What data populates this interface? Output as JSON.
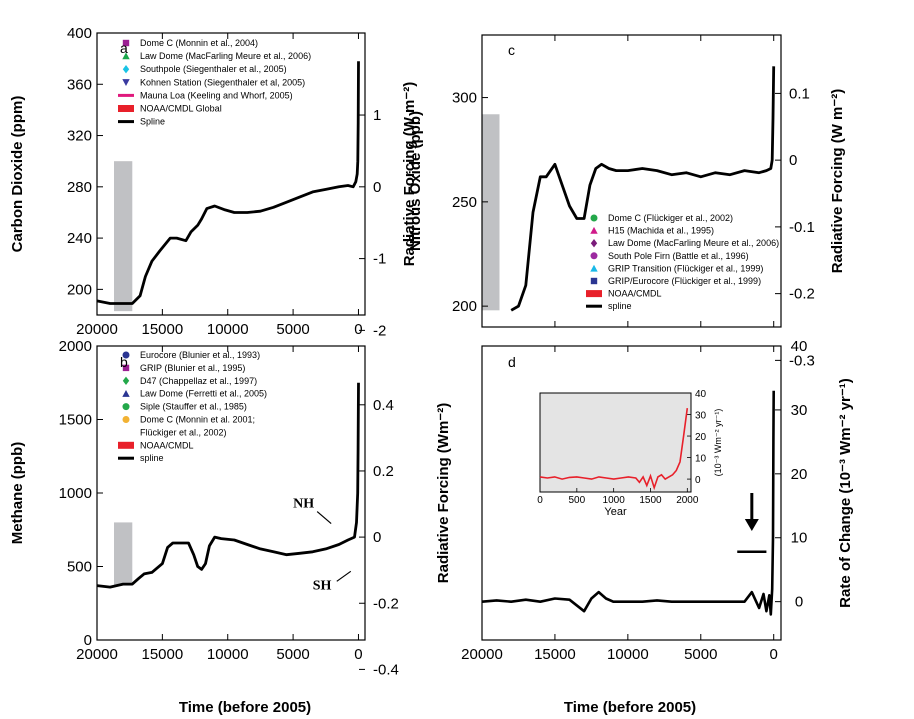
{
  "figure": {
    "x_axis_label": "Time (before 2005)"
  },
  "colors": {
    "dome_c": "#9b1f93",
    "law_dome": "#1aa64a",
    "southpole": "#19c3e5",
    "kohnen": "#3a3aa0",
    "mauna_loa": "#e0197d",
    "noaa": "#e8202a",
    "spline": "#000000",
    "gray_bar": "#c0c1c4",
    "n2o_domec": "#23a84a",
    "n2o_h15": "#d01a8a",
    "n2o_lawdome": "#7a1c7a",
    "n2o_southpole_firn": "#9c2aa0",
    "grip_transition": "#19b9e8",
    "grip_eurocore": "#2a3592",
    "eurocore": "#2a3592",
    "grip": "#9b1f93",
    "d47": "#23a84a",
    "ch4_lawdome": "#2a3592",
    "siple": "#23a84a",
    "ch4_domec": "#f2b233",
    "inset_bg": "#e4e4e4",
    "inset_line": "#e8202a"
  },
  "chart_data": [
    {
      "id": "a",
      "type": "scatter",
      "panel_label": "a",
      "xlabel": "Time (before 2005)",
      "ylabel": "Carbon Dioxide (ppm)",
      "ylabel_right": "Radiative Forcing (W m⁻²)",
      "xlim": [
        20000,
        -500
      ],
      "ylim": [
        180,
        400
      ],
      "x_ticks": [
        20000,
        15000,
        10000,
        5000,
        0
      ],
      "x_tick_labels": [
        "20000",
        "15000",
        "10000",
        "5000",
        "0"
      ],
      "y_ticks": [
        200,
        240,
        280,
        320,
        360,
        400
      ],
      "y_tick_labels": [
        "200",
        "240",
        "280",
        "320",
        "360",
        "400"
      ],
      "right_ticks": [
        {
          "label": "1",
          "value": 1
        },
        {
          "label": "0",
          "value": 0
        },
        {
          "label": "-1",
          "value": -1
        },
        {
          "label": "-2",
          "value": -2
        }
      ],
      "right_map": {
        "r0": 0,
        "y0": 280,
        "r1": 1,
        "y1": 336
      },
      "gray_bar": {
        "x0": 18700,
        "x1": 17300,
        "y0": 183,
        "y1": 300
      },
      "legend": [
        {
          "label": "Dome C (Monnin et al., 2004)",
          "marker": "square",
          "color": "#9b1f93"
        },
        {
          "label": "Law Dome (MacFarling Meure et al., 2006)",
          "marker": "triangle",
          "color": "#1aa64a"
        },
        {
          "label": "Southpole (Siegenthaler et al., 2005)",
          "marker": "diamond",
          "color": "#19c3e5"
        },
        {
          "label": "Kohnen Station (Siegenthaler et al, 2005)",
          "marker": "tri_down",
          "color": "#3a3aa0"
        },
        {
          "label": "Mauna Loa (Keeling and Whorf, 2005)",
          "marker": "line",
          "color": "#e0197d"
        },
        {
          "label": "NOAA/CMDL Global",
          "marker": "bar",
          "color": "#e8202a"
        },
        {
          "label": "Spline",
          "marker": "line",
          "color": "#000000"
        }
      ],
      "series": [
        {
          "name": "Spline",
          "color": "#000000",
          "x": [
            20000,
            19000,
            18000,
            17300,
            16700,
            16300,
            15800,
            15200,
            14800,
            14400,
            13900,
            13200,
            12800,
            12300,
            12000,
            11600,
            11000,
            10200,
            9500,
            8500,
            7500,
            6500,
            5500,
            4500,
            3500,
            2500,
            1500,
            800,
            400,
            200,
            100,
            50,
            20,
            0
          ],
          "y": [
            191,
            189,
            189,
            189,
            195,
            210,
            222,
            230,
            235,
            240,
            240,
            238,
            245,
            250,
            255,
            263,
            265,
            262,
            260,
            260,
            261,
            264,
            268,
            272,
            276,
            278,
            280,
            281,
            280,
            284,
            290,
            300,
            330,
            378
          ]
        }
      ]
    },
    {
      "id": "b",
      "type": "scatter",
      "panel_label": "b",
      "xlabel": "Time (before 2005)",
      "ylabel": "Methane (ppb)",
      "ylabel_right": "Radiative Forcing (Wm⁻²)",
      "xlim": [
        20000,
        -500
      ],
      "ylim": [
        0,
        2000
      ],
      "x_ticks": [
        20000,
        15000,
        10000,
        5000,
        0
      ],
      "x_tick_labels": [
        "20000",
        "15000",
        "10000",
        "5000",
        "0"
      ],
      "y_ticks": [
        0,
        500,
        1000,
        1500,
        2000
      ],
      "y_tick_labels": [
        "0",
        "500",
        "1000",
        "1500",
        "2000"
      ],
      "right_ticks": [
        {
          "label": "0.4",
          "value": 0.4
        },
        {
          "label": "0.2",
          "value": 0.2
        },
        {
          "label": "0",
          "value": 0
        },
        {
          "label": "-0.2",
          "value": -0.2
        },
        {
          "label": "-0.4",
          "value": -0.4
        }
      ],
      "right_map": {
        "r0": 0,
        "y0": 700,
        "r1": 0.2,
        "y1": 1150
      },
      "gray_bar": {
        "x0": 18700,
        "x1": 17300,
        "y0": 370,
        "y1": 800
      },
      "legend": [
        {
          "label": "Eurocore  (Blunier et al., 1993)",
          "marker": "circle",
          "color": "#2a3592"
        },
        {
          "label": "GRIP (Blunier et al., 1995)",
          "marker": "square",
          "color": "#9b1f93"
        },
        {
          "label": "D47 (Chappellaz et al., 1997)",
          "marker": "diamond",
          "color": "#23a84a"
        },
        {
          "label": "Law Dome (Ferretti et al., 2005)",
          "marker": "triangle",
          "color": "#2a3592"
        },
        {
          "label": "Siple (Stauffer et al., 1985)",
          "marker": "circle",
          "color": "#23a84a"
        },
        {
          "label": "Dome C (Monnin et al. 2001;",
          "marker": "circle",
          "color": "#f2b233"
        },
        {
          "label": "Flückiger et al., 2002)",
          "marker": "none",
          "color": "#f2b233"
        },
        {
          "label": "NOAA/CMDL",
          "marker": "bar",
          "color": "#e8202a"
        },
        {
          "label": "spline",
          "marker": "line",
          "color": "#000000"
        }
      ],
      "annotations": [
        {
          "text": "NH",
          "x": 2700,
          "y": 860
        },
        {
          "text": "SH",
          "x": 1200,
          "y": 440
        }
      ],
      "series": [
        {
          "name": "spline",
          "color": "#000000",
          "x": [
            20000,
            19000,
            18000,
            17300,
            16800,
            16400,
            15800,
            15000,
            14600,
            14200,
            13600,
            13000,
            12600,
            12300,
            12000,
            11700,
            11400,
            11000,
            10500,
            9500,
            8500,
            7500,
            6500,
            5500,
            4500,
            3500,
            2500,
            1500,
            800,
            300,
            150,
            60,
            30,
            0
          ],
          "y": [
            370,
            360,
            380,
            380,
            420,
            450,
            460,
            520,
            630,
            660,
            660,
            660,
            580,
            500,
            480,
            520,
            640,
            700,
            690,
            680,
            650,
            620,
            600,
            580,
            590,
            600,
            620,
            650,
            680,
            700,
            800,
            1000,
            1300,
            1750
          ]
        }
      ]
    },
    {
      "id": "c",
      "type": "scatter",
      "panel_label": "c",
      "xlabel": "",
      "ylabel": "Nitrous Oxide (ppb)",
      "ylabel_right": "Radiative Forcing (W m⁻²)",
      "xlim": [
        20000,
        -500
      ],
      "ylim": [
        190,
        330
      ],
      "x_ticks": [
        20000,
        15000,
        10000,
        5000,
        0
      ],
      "x_tick_labels": [
        "",
        "",
        "",
        "",
        ""
      ],
      "y_ticks": [
        200,
        250,
        300
      ],
      "y_tick_labels": [
        "200",
        "250",
        "300"
      ],
      "right_ticks": [
        {
          "label": "0.1",
          "value": 0.1
        },
        {
          "label": "0",
          "value": 0
        },
        {
          "label": "-0.1",
          "value": -0.1
        },
        {
          "label": "-0.2",
          "value": -0.2
        },
        {
          "label": "-0.3",
          "value": -0.3
        }
      ],
      "right_map": {
        "r0": 0,
        "y0": 270,
        "r1": 0.1,
        "y1": 302
      },
      "gray_bar": {
        "x0": 20000,
        "x1": 18800,
        "y0": 198,
        "y1": 292
      },
      "legend": [
        {
          "label": "Dome C (Flückiger et al., 2002)",
          "marker": "circle",
          "color": "#23a84a"
        },
        {
          "label": "H15 (Machida et al., 1995)",
          "marker": "triangle",
          "color": "#d01a8a"
        },
        {
          "label": "Law Dome (MacFarling Meure et al., 2006)",
          "marker": "diamond",
          "color": "#7a1c7a"
        },
        {
          "label": "South Pole Firn (Battle et al., 1996)",
          "marker": "circle",
          "color": "#9c2aa0"
        },
        {
          "label": "GRIP Transition (Flückiger et al., 1999)",
          "marker": "triangle",
          "color": "#19b9e8"
        },
        {
          "label": "GRIP/Eurocore (Flückiger et al., 1999)",
          "marker": "square",
          "color": "#2a3592"
        },
        {
          "label": "NOAA/CMDL",
          "marker": "bar",
          "color": "#e8202a"
        },
        {
          "label": "spline",
          "marker": "line",
          "color": "#000000"
        }
      ],
      "series": [
        {
          "name": "spline",
          "color": "#000000",
          "x": [
            18000,
            17500,
            17000,
            16500,
            16000,
            15600,
            15000,
            14500,
            14000,
            13500,
            13000,
            12600,
            12200,
            11800,
            11300,
            10800,
            10000,
            9000,
            8000,
            7000,
            6000,
            5000,
            4000,
            3000,
            2000,
            1000,
            500,
            200,
            100,
            50,
            0
          ],
          "y": [
            198,
            200,
            210,
            245,
            262,
            262,
            268,
            258,
            248,
            242,
            242,
            258,
            266,
            268,
            266,
            265,
            265,
            266,
            265,
            263,
            264,
            262,
            264,
            263,
            265,
            264,
            265,
            266,
            270,
            290,
            315
          ]
        }
      ]
    },
    {
      "id": "d",
      "type": "line",
      "panel_label": "d",
      "xlabel": "Time (before 2005)",
      "ylabel": "",
      "ylabel_right": "Rate of Change (10⁻³ Wm⁻² yr⁻¹)",
      "xlim": [
        20000,
        -500
      ],
      "ylim": [
        -6,
        40
      ],
      "x_ticks": [
        20000,
        15000,
        10000,
        5000,
        0
      ],
      "x_tick_labels": [
        "20000",
        "15000",
        "10000",
        "5000",
        "0"
      ],
      "y_ticks": [
        0,
        10,
        20,
        30,
        40
      ],
      "y_tick_labels": [
        "0",
        "10",
        "20",
        "30",
        "40"
      ],
      "series": [
        {
          "name": "rate of change",
          "color": "#000000",
          "x": [
            20000,
            19000,
            18000,
            17000,
            16000,
            15000,
            14000,
            13000,
            12500,
            12000,
            11500,
            11000,
            10000,
            9000,
            8000,
            7000,
            6000,
            5000,
            4000,
            3000,
            2000,
            1500,
            1000,
            700,
            500,
            300,
            200,
            100,
            50,
            20,
            0
          ],
          "y": [
            0,
            0.2,
            0,
            0.3,
            0,
            0.5,
            0.3,
            -1.5,
            0.5,
            1.5,
            0.5,
            0,
            0,
            0,
            0.2,
            0,
            0,
            0,
            0,
            0,
            0,
            1.5,
            -1,
            1.2,
            -1.5,
            1,
            -2,
            2,
            10,
            25,
            33
          ]
        }
      ],
      "arrow": {
        "x": 1500,
        "y_from": 17,
        "y_to": 12,
        "bar_x0": 2500,
        "bar_x1": 500,
        "bar_y": 7.8
      },
      "inset": {
        "xlabel": "Year",
        "ylabel": "(10⁻³ Wm⁻² yr⁻¹)",
        "xlim": [
          0,
          2050
        ],
        "ylim": [
          -6,
          40
        ],
        "x_ticks": [
          0,
          500,
          1000,
          1500,
          2000
        ],
        "x_tick_labels": [
          "0",
          "500",
          "1000",
          "1500",
          "2000"
        ],
        "y_ticks": [
          0,
          10,
          20,
          30,
          40
        ],
        "y_tick_labels": [
          "0",
          "10",
          "20",
          "30",
          "40"
        ],
        "series": [
          {
            "name": "rate of change",
            "color": "#e8202a",
            "x": [
              0,
              100,
              200,
              300,
              400,
              500,
              600,
              700,
              800,
              900,
              1000,
              1100,
              1200,
              1300,
              1350,
              1400,
              1450,
              1500,
              1550,
              1600,
              1650,
              1700,
              1750,
              1800,
              1850,
              1900,
              1950,
              2000
            ],
            "y": [
              1,
              0.5,
              1,
              0,
              0.8,
              1,
              0.5,
              0,
              1,
              0.5,
              0,
              0.5,
              1,
              0.5,
              -1.5,
              1,
              -3,
              1.5,
              -4,
              1,
              2,
              0,
              1,
              2,
              4,
              8,
              20,
              33
            ]
          }
        ]
      }
    }
  ]
}
